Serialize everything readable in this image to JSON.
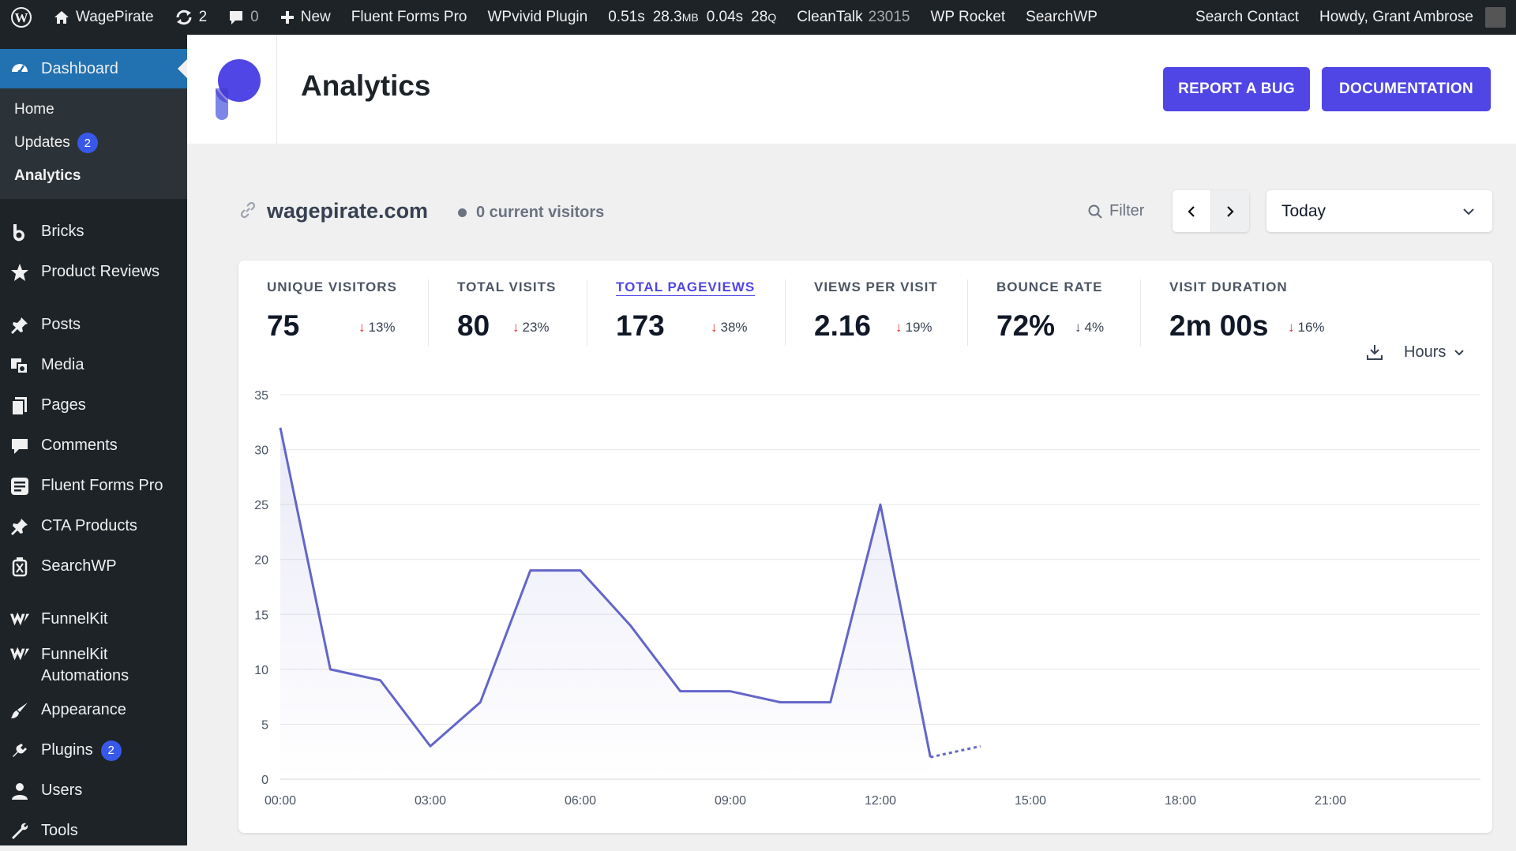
{
  "adminbar": {
    "site_name": "WagePirate",
    "updates_count": "2",
    "comments_count": "0",
    "new_label": "New",
    "fluent_forms": "Fluent Forms Pro",
    "wpvivid": "WPvivid Plugin",
    "stat_time": "0.51s",
    "stat_mem": "28.3",
    "stat_mem_unit": "MB",
    "stat_query_time": "0.04s",
    "stat_queries": "28",
    "stat_queries_unit": "Q",
    "cleantalk": "CleanTalk",
    "cleantalk_count": "23015",
    "wp_rocket": "WP Rocket",
    "searchwp": "SearchWP",
    "search_contact": "Search Contact",
    "howdy": "Howdy, Grant Ambrose"
  },
  "sidebar": {
    "dashboard": "Dashboard",
    "sub": {
      "home": "Home",
      "updates": "Updates",
      "updates_badge": "2",
      "analytics": "Analytics"
    },
    "items": [
      {
        "label": "Bricks",
        "icon": "bricks-icon"
      },
      {
        "label": "Product Reviews",
        "icon": "star-icon"
      },
      {
        "label": "Posts",
        "icon": "pin-icon"
      },
      {
        "label": "Media",
        "icon": "media-icon"
      },
      {
        "label": "Pages",
        "icon": "pages-icon"
      },
      {
        "label": "Comments",
        "icon": "comments-icon"
      },
      {
        "label": "Fluent Forms Pro",
        "icon": "form-icon"
      },
      {
        "label": "CTA Products",
        "icon": "pin-icon"
      },
      {
        "label": "SearchWP",
        "icon": "lantern-icon"
      },
      {
        "label": "FunnelKit",
        "icon": "funnelkit-icon"
      },
      {
        "label": "FunnelKit Automations",
        "icon": "funnelkit-icon"
      },
      {
        "label": "Appearance",
        "icon": "brush-icon"
      },
      {
        "label": "Plugins",
        "icon": "plug-icon"
      },
      {
        "label": "Users",
        "icon": "user-icon"
      },
      {
        "label": "Tools",
        "icon": "wrench-icon"
      }
    ],
    "plugins_badge": "2"
  },
  "header": {
    "title": "Analytics",
    "report_bug": "REPORT A BUG",
    "documentation": "DOCUMENTATION"
  },
  "toolbar": {
    "site": "wagepirate.com",
    "current_visitors": "0 current visitors",
    "filter": "Filter",
    "period": "Today"
  },
  "stats": [
    {
      "label": "UNIQUE VISITORS",
      "value": "75",
      "change": "13%"
    },
    {
      "label": "TOTAL VISITS",
      "value": "80",
      "change": "23%"
    },
    {
      "label": "TOTAL PAGEVIEWS",
      "value": "173",
      "change": "38%"
    },
    {
      "label": "VIEWS PER VISIT",
      "value": "2.16",
      "change": "19%"
    },
    {
      "label": "BOUNCE RATE",
      "value": "72%",
      "change": "4%"
    },
    {
      "label": "VISIT DURATION",
      "value": "2m 00s",
      "change": "16%"
    }
  ],
  "interval": "Hours",
  "colors": {
    "accent": "#4f46e5",
    "line": "#6366c9",
    "wp_blue": "#2271b1",
    "down": "#dc2626"
  },
  "chart_data": {
    "type": "line",
    "x": [
      "00:00",
      "01:00",
      "02:00",
      "03:00",
      "04:00",
      "05:00",
      "06:00",
      "07:00",
      "08:00",
      "09:00",
      "10:00",
      "11:00",
      "12:00",
      "13:00",
      "14:00"
    ],
    "values": [
      32,
      10,
      9,
      3,
      7,
      19,
      19,
      14,
      8,
      8,
      7,
      7,
      25,
      2,
      3
    ],
    "partial_from_index": 13,
    "xticks": [
      "00:00",
      "03:00",
      "06:00",
      "09:00",
      "12:00",
      "15:00",
      "18:00",
      "21:00"
    ],
    "yticks": [
      0,
      5,
      10,
      15,
      20,
      25,
      30,
      35
    ],
    "ylim": [
      0,
      35
    ],
    "x_hours_total": 24,
    "grid": true
  }
}
